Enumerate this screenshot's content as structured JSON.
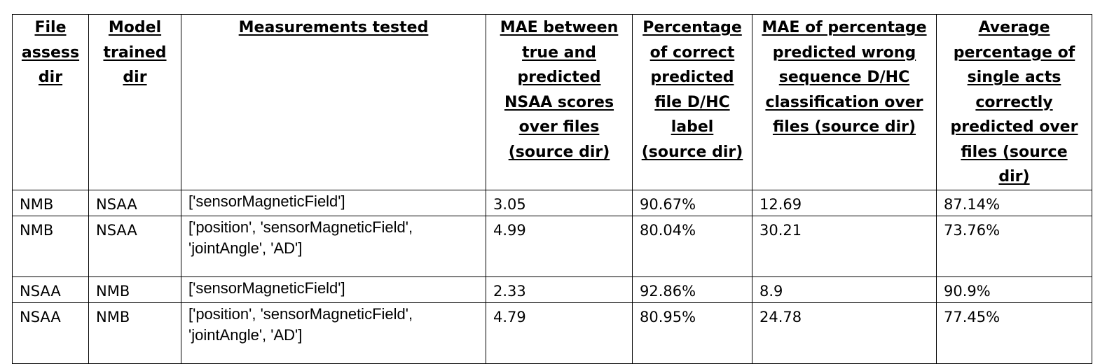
{
  "table": {
    "headers": [
      "File assess dir",
      "Model trained dir",
      "Measurements tested",
      "MAE between true and predicted NSAA scores over files (source dir)",
      "Percentage of correct predicted file D/HC label (source dir)",
      "MAE of percentage predicted wrong sequence D/HC classification over files (source dir)",
      "Average percentage of single acts correctly predicted over files (source dir)"
    ],
    "rows": [
      [
        "NMB",
        "NSAA",
        "['sensorMagneticField']",
        "3.05",
        "90.67%",
        "12.69",
        "87.14%"
      ],
      [
        "NMB",
        "NSAA",
        "['position', 'sensorMagneticField', 'jointAngle', 'AD']",
        "4.99",
        "80.04%",
        "30.21",
        "73.76%"
      ],
      [
        "NSAA",
        "NMB",
        "['sensorMagneticField']",
        "2.33",
        "92.86%",
        "8.9",
        "90.9%"
      ],
      [
        "NSAA",
        "NMB",
        "['position', 'sensorMagneticField', 'jointAngle', 'AD']",
        "4.79",
        "80.95%",
        "24.78",
        "77.45%"
      ]
    ]
  }
}
